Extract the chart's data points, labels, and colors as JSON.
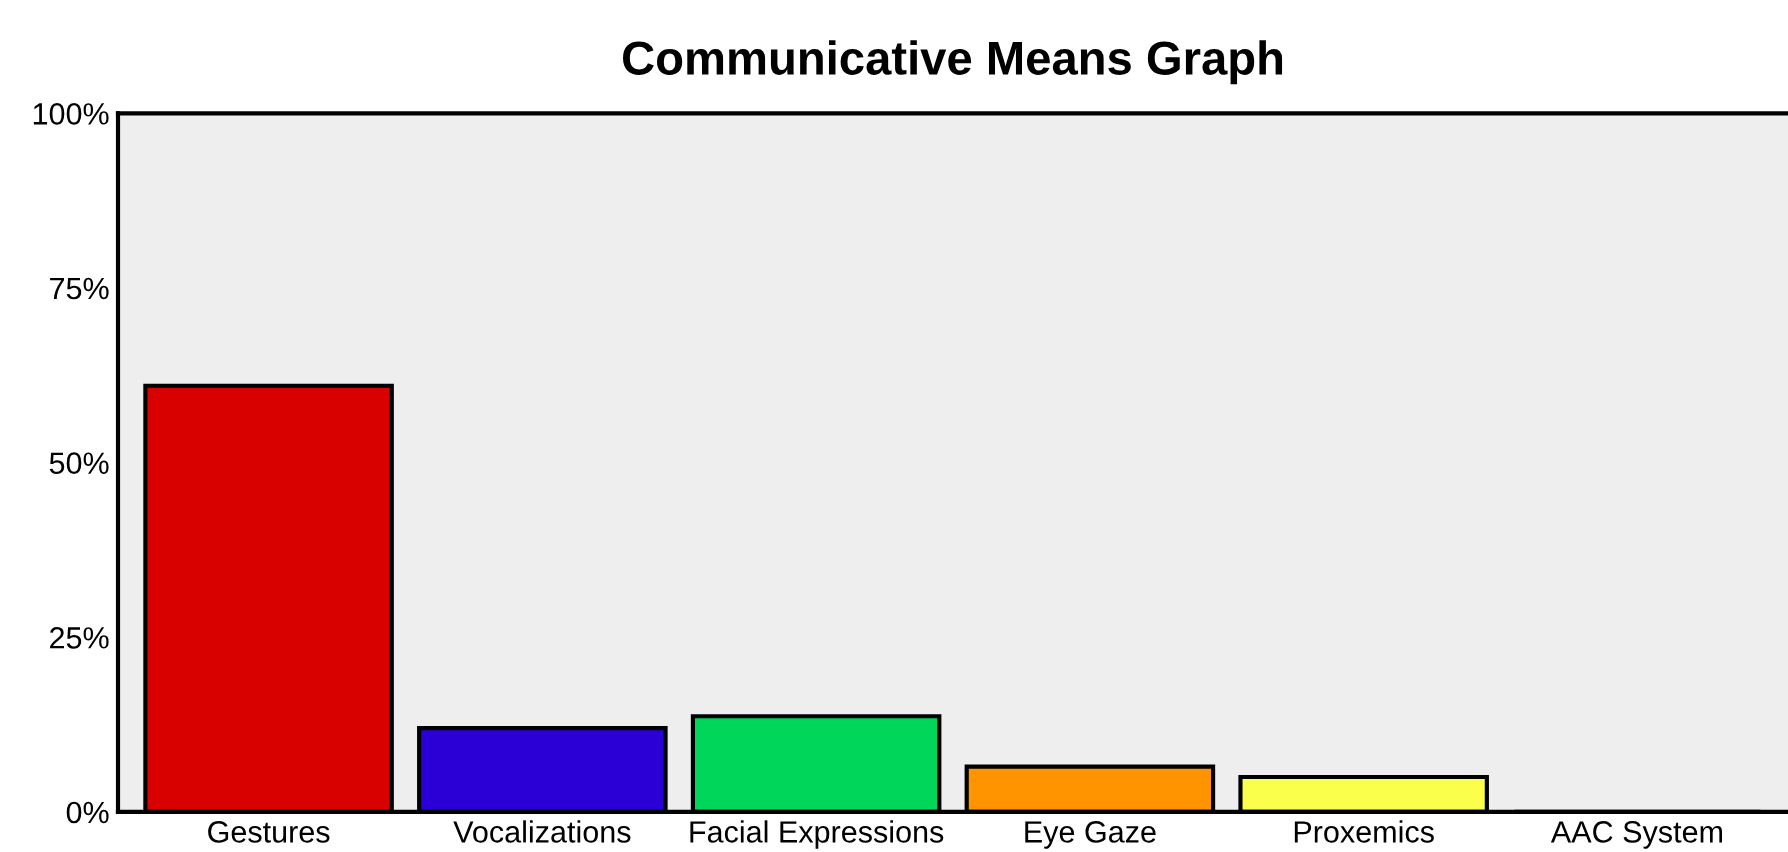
{
  "chart_data": {
    "type": "bar",
    "title": "Communicative Means Graph",
    "categories": [
      "Gestures",
      "Vocalizations",
      "Facial Expressions",
      "Eye Gaze",
      "Proxemics",
      "AAC System"
    ],
    "values": [
      61,
      12,
      13.7,
      6.5,
      5,
      0
    ],
    "colors": [
      "#d90000",
      "#2b00d6",
      "#00d65a",
      "#ff9400",
      "#f9ff4a",
      "#cc00cc"
    ],
    "ylim": [
      0,
      100
    ],
    "yticks": [
      {
        "value": 0,
        "label": "0%"
      },
      {
        "value": 25,
        "label": "25%"
      },
      {
        "value": 50,
        "label": "50%"
      },
      {
        "value": 75,
        "label": "75%"
      },
      {
        "value": 100,
        "label": "100%"
      }
    ],
    "grid": false
  }
}
